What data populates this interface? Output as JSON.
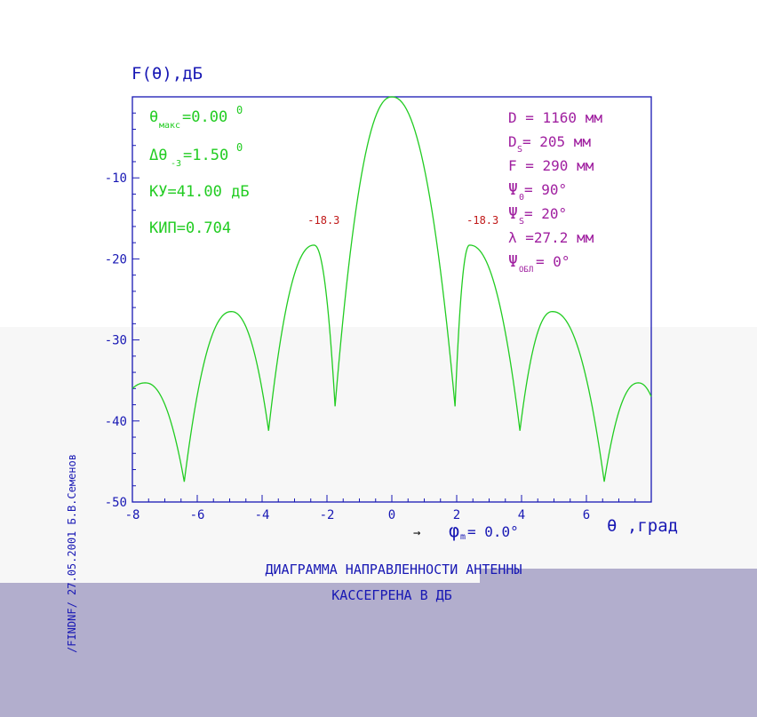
{
  "colors": {
    "axis": "#1818b4",
    "curve": "#22cc22",
    "params": "#a020a0",
    "peak_labels": "#c01818",
    "title": "#1818b4",
    "side": "#1818b4"
  },
  "chart_data": {
    "type": "line",
    "title_line1": "ДИАГРАММА НАПРАВЛЕННОСТИ АНТЕННЫ",
    "title_line2": "КАССЕГРЕНА В ДБ",
    "ylabel": "F(θ),дБ",
    "xlabel": "θ ,град",
    "xlim": [
      -8,
      8
    ],
    "ylim": [
      -50,
      0
    ],
    "x_ticks": [
      "-8",
      "-6",
      "-4",
      "-2",
      "0",
      "2",
      "4",
      "6"
    ],
    "y_ticks": [
      "-10",
      "-20",
      "-30",
      "-40",
      "-50"
    ],
    "series": [
      {
        "peaks": [
          {
            "x": -7.6,
            "y": -35.3
          },
          {
            "x": -4.95,
            "y": -26.5
          },
          {
            "x": -2.4,
            "y": -18.3
          },
          {
            "x": 0.0,
            "y": 0.0
          },
          {
            "x": 2.4,
            "y": -18.3
          },
          {
            "x": 4.95,
            "y": -26.5
          },
          {
            "x": 7.6,
            "y": -35.3
          }
        ],
        "nulls": [
          {
            "x": -6.4,
            "y": -47.5
          },
          {
            "x": -3.8,
            "y": -41.2
          },
          {
            "x": -1.75,
            "y": -38.2
          },
          {
            "x": 1.95,
            "y": -38.2
          },
          {
            "x": 3.95,
            "y": -41.2
          },
          {
            "x": 6.55,
            "y": -47.5
          }
        ],
        "end_values": {
          "left": -36.0,
          "right": -37.0
        }
      }
    ],
    "annotations": [
      {
        "text": "-18.3",
        "x": -2.1,
        "y": -18.3
      },
      {
        "text": "-18.3",
        "x": 2.8,
        "y": -18.3
      }
    ]
  },
  "left_params": {
    "theta_max_sym": "θ",
    "theta_max_sub": "макс",
    "theta_max_val": "=0.00",
    "theta_max_sup": "0",
    "dtheta_sym": "Δθ",
    "dtheta_sub": "-3",
    "dtheta_val": "=1.50",
    "dtheta_sup": "0",
    "ku": "КУ=41.00 дБ",
    "kip": "КИП=0.704"
  },
  "right_params": {
    "d": "D = 1160 мм",
    "ds_main": "D",
    "ds_sub": "S",
    "ds_val": " = 205 мм",
    "f": "F = 290 мм",
    "psi0_main": "Ψ",
    "psi0_sub": "0",
    "psi0_val": " = 90°",
    "psis_main": "Ψ",
    "psis_sub": "S",
    "psis_val": " = 20°",
    "lambda": "λ =27.2 мм",
    "psiobl_main": "Ψ",
    "psiobl_sub": "ОБЛ",
    "psiobl_val": " = 0°"
  },
  "phi_label": {
    "arrow": "→",
    "main": "φ",
    "sub": "m",
    "val": " = 0.0°"
  },
  "side_text": "/FINDNF/  27.05.2001  Б.В.Семенов"
}
